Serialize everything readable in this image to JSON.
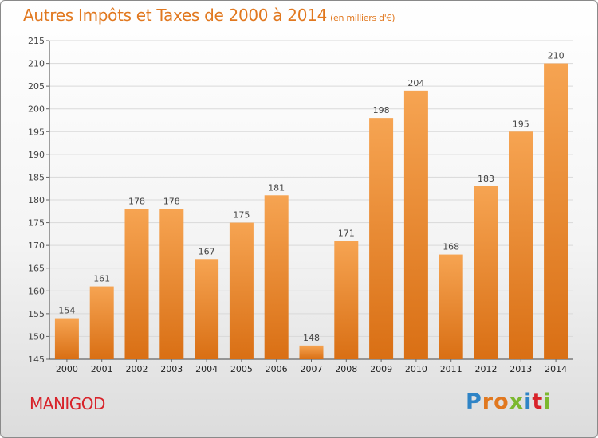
{
  "chart_data": {
    "type": "bar",
    "title": "Autres Impôts et Taxes de 2000 à 2014",
    "subtitle": "(en milliers d'€)",
    "categories": [
      "2000",
      "2001",
      "2002",
      "2003",
      "2004",
      "2005",
      "2006",
      "2007",
      "2008",
      "2009",
      "2010",
      "2011",
      "2012",
      "2013",
      "2014"
    ],
    "values": [
      154,
      161,
      178,
      178,
      167,
      175,
      181,
      148,
      171,
      198,
      204,
      168,
      183,
      195,
      210
    ],
    "ylim": [
      145,
      215
    ],
    "yticks": [
      145,
      150,
      155,
      160,
      165,
      170,
      175,
      180,
      185,
      190,
      195,
      200,
      205,
      210,
      215
    ],
    "grid": true,
    "legend": "none",
    "bar_color_top": "#f6a452",
    "bar_color_bottom": "#d96f14",
    "text_color": "#e1781f"
  },
  "footer": {
    "city": "MANIGOD",
    "brand": "Proxiti",
    "brand_colors": [
      "#2f84c6",
      "#e1781f",
      "#e1781f",
      "#7cb82f",
      "#2f84c6",
      "#d8232a",
      "#7cb82f"
    ]
  }
}
